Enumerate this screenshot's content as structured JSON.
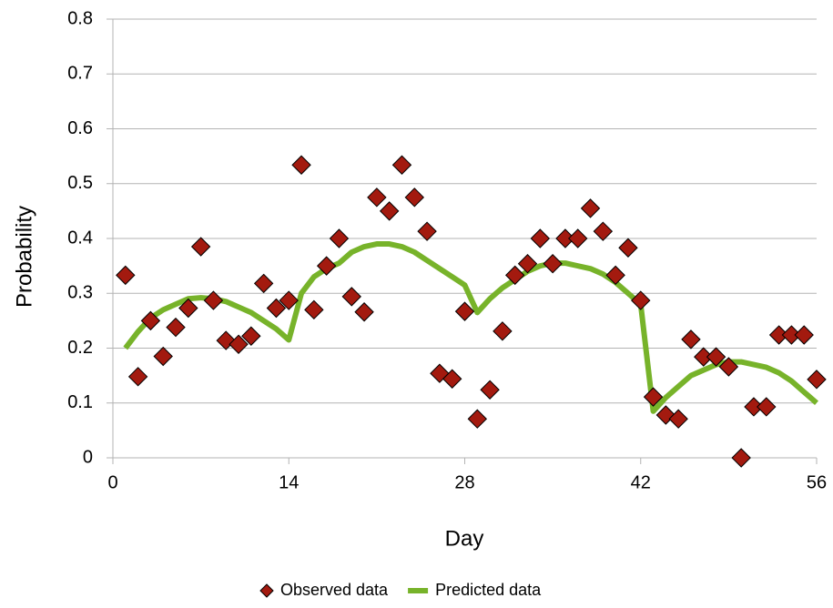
{
  "chart_data": {
    "type": "line",
    "x_label": "Day",
    "y_label": "Probability",
    "x": [
      1,
      2,
      3,
      4,
      5,
      6,
      7,
      8,
      9,
      10,
      11,
      12,
      13,
      14,
      15,
      16,
      17,
      18,
      19,
      20,
      21,
      22,
      23,
      24,
      25,
      26,
      27,
      28,
      29,
      30,
      31,
      32,
      33,
      34,
      35,
      36,
      37,
      38,
      39,
      40,
      41,
      42,
      43,
      44,
      45,
      46,
      47,
      48,
      49,
      50,
      51,
      52,
      53,
      54,
      55,
      56
    ],
    "series": [
      {
        "name": "Observed data",
        "mode": "markers",
        "color": "#a31a0f",
        "values": [
          0.333,
          0.148,
          0.25,
          0.185,
          0.238,
          0.273,
          0.385,
          0.287,
          0.214,
          0.207,
          0.222,
          0.318,
          0.273,
          0.287,
          0.534,
          0.27,
          0.35,
          0.4,
          0.294,
          0.266,
          0.475,
          0.45,
          0.534,
          0.475,
          0.413,
          0.154,
          0.144,
          0.267,
          0.071,
          0.124,
          0.231,
          0.333,
          0.354,
          0.4,
          0.354,
          0.4,
          0.4,
          0.455,
          0.413,
          0.333,
          0.383,
          0.287,
          0.111,
          0.078,
          0.071,
          0.216,
          0.184,
          0.184,
          0.166,
          0,
          0.093,
          0.093,
          0.224,
          0.224,
          0.224,
          0.143
        ]
      },
      {
        "name": "Predicted data",
        "mode": "line",
        "color": "#77b32a",
        "values": [
          0.2,
          0.23,
          0.255,
          0.27,
          0.28,
          0.29,
          0.292,
          0.29,
          0.285,
          0.275,
          0.265,
          0.25,
          0.235,
          0.215,
          0.3,
          0.33,
          0.345,
          0.355,
          0.375,
          0.385,
          0.39,
          0.39,
          0.385,
          0.375,
          0.36,
          0.345,
          0.33,
          0.315,
          0.265,
          0.29,
          0.31,
          0.325,
          0.34,
          0.35,
          0.355,
          0.355,
          0.35,
          0.345,
          0.335,
          0.32,
          0.3,
          0.28,
          0.085,
          0.11,
          0.13,
          0.15,
          0.16,
          0.17,
          0.175,
          0.175,
          0.17,
          0.165,
          0.155,
          0.14,
          0.12,
          0.1
        ]
      }
    ],
    "xlim": [
      0,
      56
    ],
    "xticks": [
      0,
      14,
      28,
      42,
      56
    ],
    "ylim": [
      0,
      0.8
    ],
    "yticks": [
      0,
      0.1,
      0.2,
      0.3,
      0.4,
      0.5,
      0.6,
      0.7,
      0.8
    ],
    "grid": true,
    "legend": "bottom"
  }
}
